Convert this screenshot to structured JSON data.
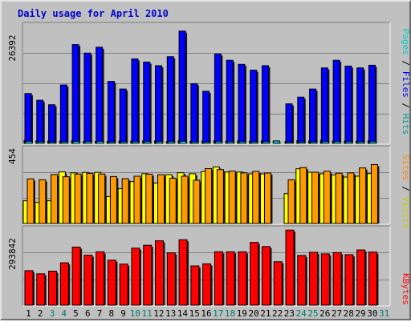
{
  "chart_data": {
    "type": "bar",
    "title": "Daily usage for April 2010",
    "categories": [
      "1",
      "2",
      "3",
      "4",
      "5",
      "6",
      "7",
      "8",
      "9",
      "10",
      "11",
      "12",
      "13",
      "14",
      "15",
      "16",
      "17",
      "18",
      "19",
      "20",
      "21",
      "22",
      "23",
      "24",
      "25",
      "26",
      "27",
      "28",
      "29",
      "30",
      "31"
    ],
    "weekend_days": [
      "3",
      "4",
      "10",
      "11",
      "17",
      "18",
      "24",
      "25",
      "31"
    ],
    "panels": {
      "hits_files_pages": {
        "max_label": "26392",
        "ylim": [
          0,
          26392
        ],
        "series": [
          {
            "name": "Hits",
            "color": "#00cccc",
            "values": [
              680,
              600,
              550,
              520,
              610,
              460,
              470,
              420,
              530,
              560,
              570,
              540,
              400,
              560,
              450,
              520,
              600,
              510,
              590,
              500,
              580,
              560,
              410,
              620,
              530,
              700,
              560,
              550,
              520,
              600,
              0
            ]
          },
          {
            "name": "Files",
            "color": "#0000ff",
            "values": [
              11100,
              9600,
              8600,
              13000,
              22000,
              20100,
              21400,
              13800,
              12100,
              18800,
              18100,
              17300,
              19300,
              25000,
              13300,
              11600,
              19900,
              18500,
              17600,
              16300,
              17300,
              0,
              8800,
              10300,
              12100,
              16800,
              18500,
              17200,
              16800,
              17400,
              0
            ]
          },
          {
            "name": "Pages",
            "color": "#00ffff",
            "values": [
              400,
              320,
              280,
              330,
              420,
              380,
              400,
              300,
              330,
              360,
              380,
              360,
              370,
              450,
              320,
              300,
              380,
              350,
              360,
              330,
              350,
              0,
              260,
              300,
              320,
              380,
              380,
              360,
              330,
              370,
              0
            ]
          }
        ]
      },
      "sites_visits": {
        "max_label": "454",
        "ylim": [
          0,
          454
        ],
        "series": [
          {
            "name": "Sites",
            "color": "#ff9900",
            "values": [
              269,
              263,
              295,
              282,
              298,
              302,
              298,
              283,
              270,
              285,
              297,
              294,
              273,
              285,
              261,
              331,
              325,
              316,
              305,
              314,
              304,
              0,
              263,
              337,
              309,
              315,
              303,
              305,
              335,
              355,
              0
            ]
          },
          {
            "name": "Visits",
            "color": "#ffff00",
            "values": [
              137,
              127,
              137,
              311,
              305,
              308,
              308,
              162,
              210,
              253,
              300,
              244,
              294,
              306,
              300,
              313,
              341,
              310,
              310,
              299,
              299,
              0,
              180,
              330,
              309,
              300,
              293,
              280,
              285,
              301,
              0
            ]
          }
        ]
      },
      "kbytes": {
        "max_label": "293842",
        "ylim": [
          0,
          293842
        ],
        "series": [
          {
            "name": "KBytes",
            "color": "#ff0000",
            "values": [
              132000,
              120000,
              130000,
              162000,
              222000,
              191000,
              204000,
              172000,
              157000,
              218000,
              229000,
              246000,
              200000,
              250000,
              150000,
              158000,
              204000,
              204000,
              204000,
              240000,
              224000,
              166000,
              287000,
              190000,
              202000,
              196000,
              201000,
              193000,
              211000,
              203000,
              0
            ]
          }
        ]
      }
    }
  }
}
